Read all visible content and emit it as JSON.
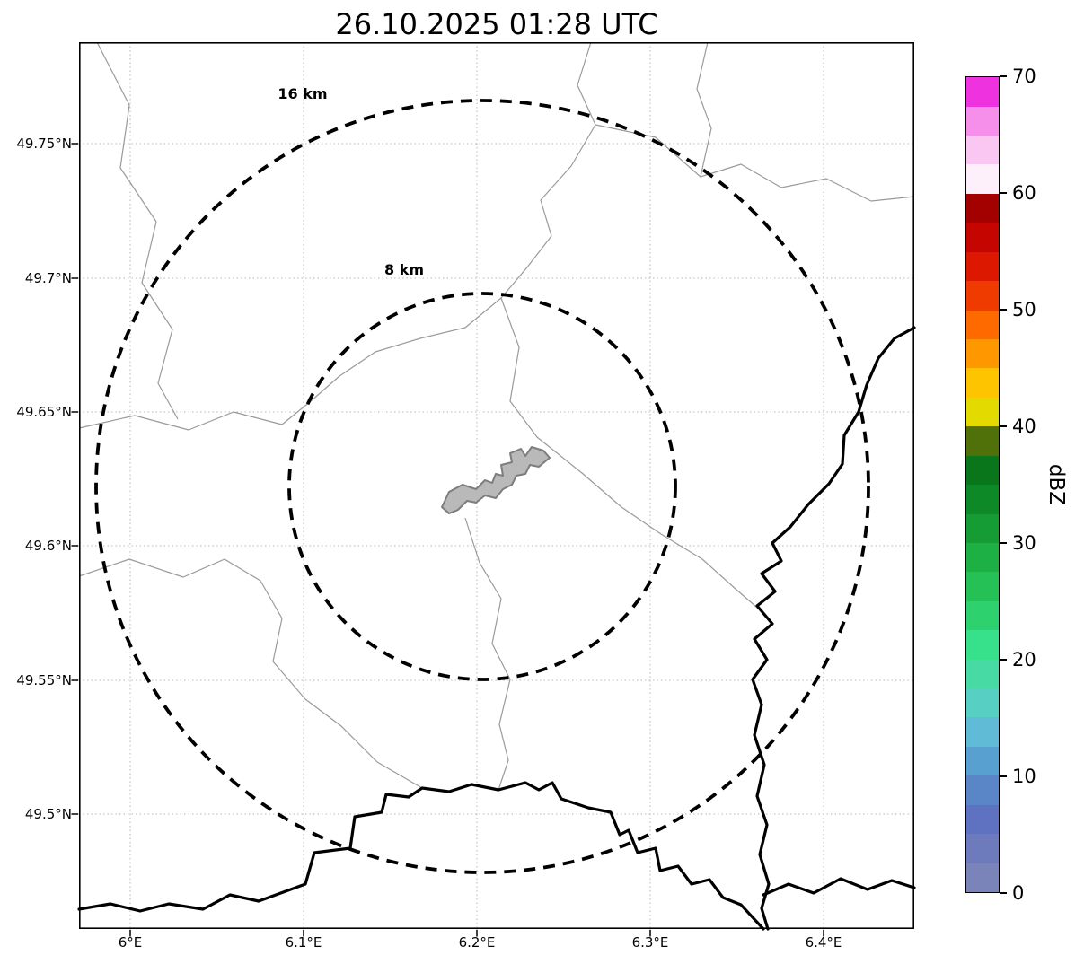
{
  "title": "26.10.2025 01:28 UTC",
  "map": {
    "x_tick_labels": [
      "6°E",
      "6.1°E",
      "6.2°E",
      "6.3°E",
      "6.4°E"
    ],
    "y_tick_labels": [
      "49.75°N",
      "49.7°N",
      "49.65°N",
      "49.6°N",
      "49.55°N",
      "49.5°N"
    ],
    "range_rings": [
      {
        "label": "8 km",
        "radius_km": 8
      },
      {
        "label": "16 km",
        "radius_km": 16
      }
    ],
    "x_range_deg_east": [
      5.97,
      6.45
    ],
    "y_range_deg_north": [
      49.46,
      49.79
    ],
    "grid": "dotted"
  },
  "colorbar": {
    "label": "dBZ",
    "min": 0,
    "max": 70,
    "tick_labels": [
      "0",
      "10",
      "20",
      "30",
      "40",
      "50",
      "60",
      "70"
    ],
    "segment_colors_bottom_to_top": [
      "#7a84b8",
      "#6d7abc",
      "#5f72c1",
      "#5a86c7",
      "#58a0cf",
      "#5fbbd6",
      "#57cfc3",
      "#47daa5",
      "#37e08b",
      "#2dd26f",
      "#25c157",
      "#1db045",
      "#159c35",
      "#0e8928",
      "#09761c",
      "#50700a",
      "#e3da00",
      "#ffc400",
      "#ff9800",
      "#ff6a00",
      "#ef3b00",
      "#dd1800",
      "#c40500",
      "#a30000",
      "#fdf0fb",
      "#fac6f2",
      "#f68fea",
      "#ee32e0"
    ]
  }
}
